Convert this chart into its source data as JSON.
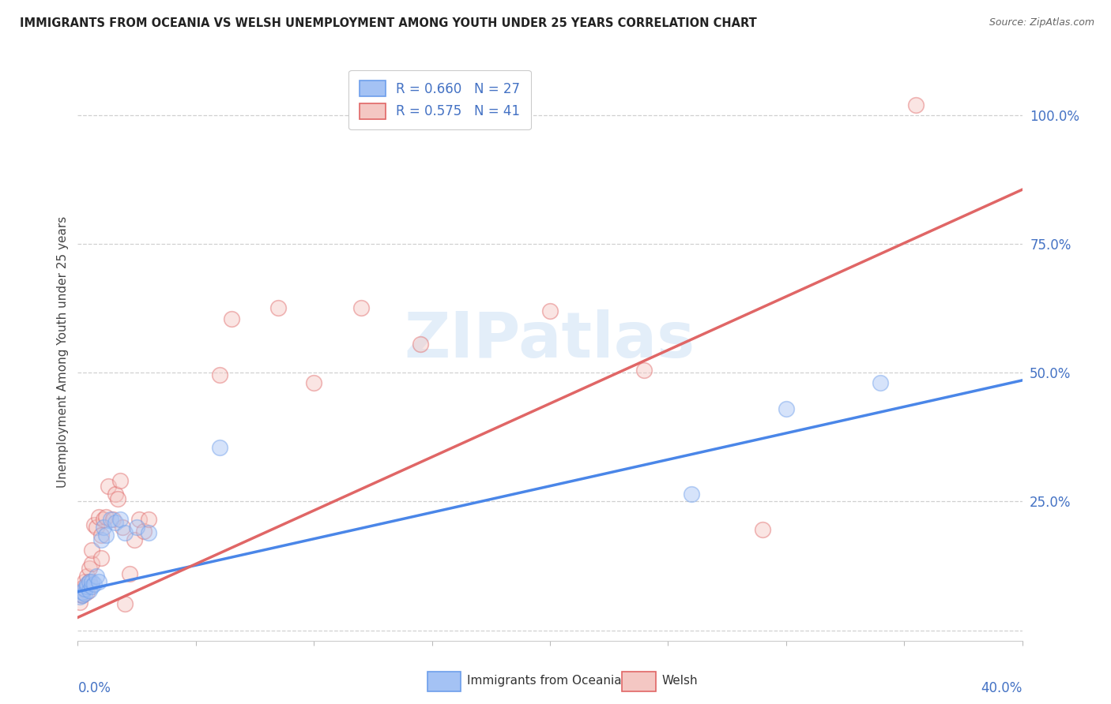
{
  "title": "IMMIGRANTS FROM OCEANIA VS WELSH UNEMPLOYMENT AMONG YOUTH UNDER 25 YEARS CORRELATION CHART",
  "source": "Source: ZipAtlas.com",
  "ylabel": "Unemployment Among Youth under 25 years",
  "ytick_labels": [
    "",
    "25.0%",
    "50.0%",
    "75.0%",
    "100.0%"
  ],
  "ytick_values": [
    0.0,
    0.25,
    0.5,
    0.75,
    1.0
  ],
  "xlim": [
    0.0,
    0.4
  ],
  "ylim": [
    -0.02,
    1.1
  ],
  "blue_color": "#a4c2f4",
  "pink_color": "#f4c7c3",
  "blue_edge_color": "#6d9eeb",
  "pink_edge_color": "#e06666",
  "blue_line_color": "#4a86e8",
  "pink_line_color": "#cc4125",
  "watermark_text": "ZIPatlas",
  "legend_label_blue": "R = 0.660   N = 27",
  "legend_label_pink": "R = 0.575   N = 41",
  "legend_color_text": "#4472c4",
  "blue_scatter_x": [
    0.001,
    0.002,
    0.002,
    0.003,
    0.003,
    0.004,
    0.004,
    0.005,
    0.005,
    0.006,
    0.006,
    0.007,
    0.008,
    0.009,
    0.01,
    0.011,
    0.012,
    0.014,
    0.016,
    0.018,
    0.02,
    0.025,
    0.03,
    0.06,
    0.26,
    0.3,
    0.34
  ],
  "blue_scatter_y": [
    0.065,
    0.068,
    0.075,
    0.072,
    0.08,
    0.085,
    0.09,
    0.078,
    0.095,
    0.085,
    0.095,
    0.09,
    0.105,
    0.095,
    0.175,
    0.2,
    0.185,
    0.215,
    0.21,
    0.215,
    0.19,
    0.2,
    0.19,
    0.355,
    0.265,
    0.43,
    0.48
  ],
  "pink_scatter_x": [
    0.001,
    0.001,
    0.002,
    0.002,
    0.003,
    0.003,
    0.004,
    0.004,
    0.005,
    0.005,
    0.006,
    0.006,
    0.007,
    0.008,
    0.009,
    0.01,
    0.01,
    0.011,
    0.012,
    0.013,
    0.015,
    0.016,
    0.017,
    0.018,
    0.019,
    0.02,
    0.022,
    0.024,
    0.026,
    0.028,
    0.03,
    0.06,
    0.065,
    0.085,
    0.1,
    0.12,
    0.145,
    0.2,
    0.24,
    0.29,
    0.355
  ],
  "pink_scatter_y": [
    0.055,
    0.07,
    0.068,
    0.082,
    0.085,
    0.095,
    0.105,
    0.075,
    0.12,
    0.095,
    0.13,
    0.155,
    0.205,
    0.2,
    0.22,
    0.14,
    0.185,
    0.215,
    0.22,
    0.28,
    0.215,
    0.265,
    0.255,
    0.29,
    0.2,
    0.052,
    0.11,
    0.175,
    0.215,
    0.192,
    0.215,
    0.495,
    0.605,
    0.625,
    0.48,
    0.625,
    0.555,
    0.62,
    0.505,
    0.195,
    1.02
  ],
  "blue_line_x": [
    0.0,
    0.4
  ],
  "blue_line_y": [
    0.075,
    0.485
  ],
  "pink_line_x": [
    0.0,
    0.4
  ],
  "pink_line_y": [
    0.025,
    0.855
  ],
  "scatter_size": 200,
  "scatter_alpha": 0.45,
  "scatter_linewidth": 1.2,
  "grid_color": "#d0d0d0",
  "grid_linestyle": "--",
  "background_color": "#ffffff"
}
